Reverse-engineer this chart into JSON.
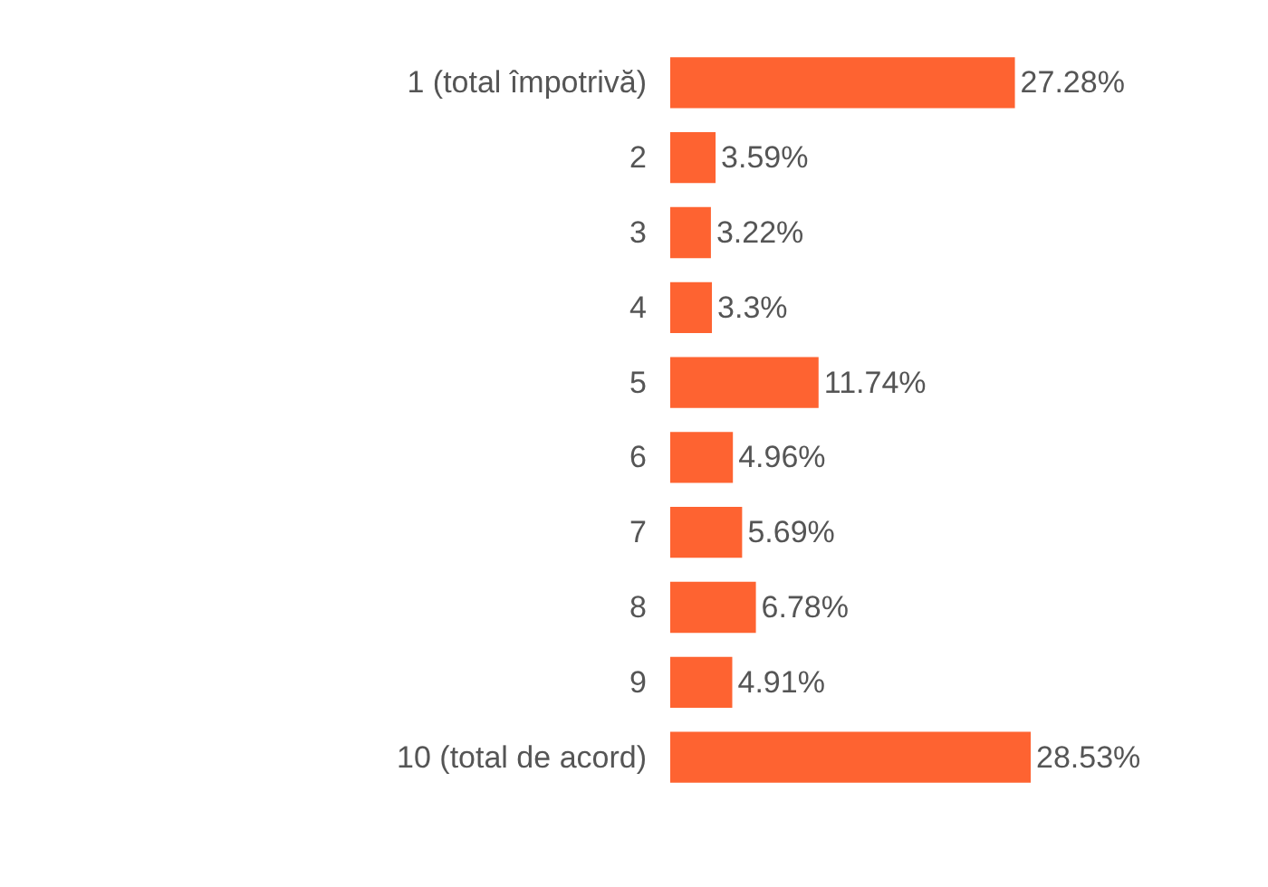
{
  "chart_data": {
    "type": "bar",
    "orientation": "horizontal",
    "categories": [
      "1 (total împotrivă)",
      "2",
      "3",
      "4",
      "5",
      "6",
      "7",
      "8",
      "9",
      "10 (total de acord)"
    ],
    "values": [
      27.28,
      3.59,
      3.22,
      3.3,
      11.74,
      4.96,
      5.69,
      6.78,
      4.91,
      28.53
    ],
    "value_labels": [
      "27.28%",
      "3.59%",
      "3.22%",
      "3.3%",
      "11.74%",
      "4.96%",
      "5.69%",
      "6.78%",
      "4.91%",
      "28.53%"
    ],
    "color": "#fe6331"
  }
}
